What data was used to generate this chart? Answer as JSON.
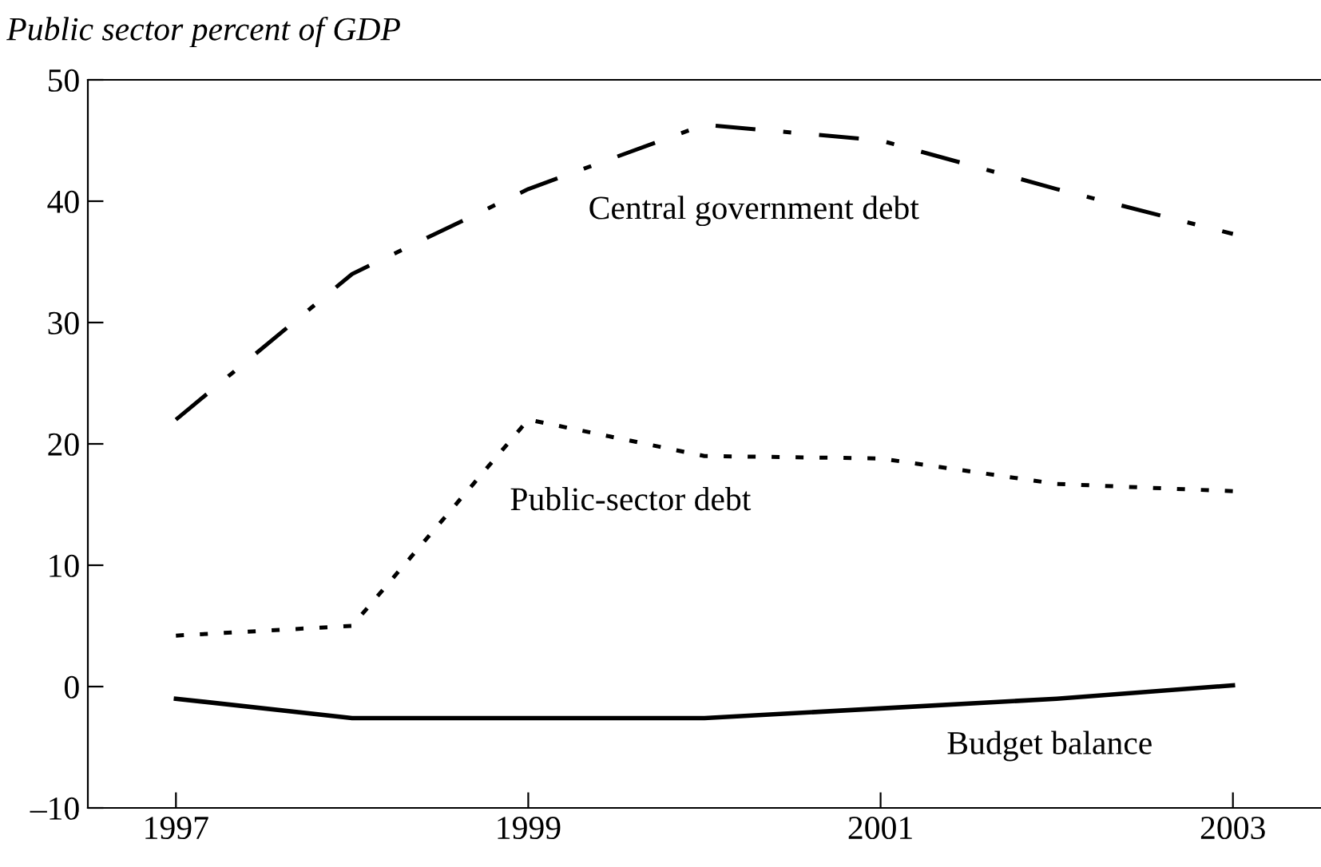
{
  "chart_data": {
    "type": "line",
    "title": "Public sector percent of GDP",
    "x": [
      1997,
      1998,
      1999,
      2000,
      2001,
      2002,
      2003
    ],
    "series": [
      {
        "name": "Central government debt",
        "color": "#000000",
        "line_style": "dashdot",
        "values": [
          22,
          34,
          41,
          46.3,
          45,
          41,
          37.3
        ]
      },
      {
        "name": "Public-sector debt",
        "color": "#000000",
        "line_style": "dotted",
        "values": [
          4.2,
          5,
          22,
          19,
          18.8,
          16.7,
          16.1
        ]
      },
      {
        "name": "Budget balance",
        "color": "#000000",
        "line_style": "solid",
        "values": [
          -1,
          -2.6,
          -2.6,
          -2.6,
          -1.8,
          -1,
          0.1
        ]
      }
    ],
    "xlim": [
      1996.5,
      2003.5
    ],
    "xticks": [
      1997,
      1999,
      2001,
      2003
    ],
    "ylim": [
      -10,
      50
    ],
    "yticks": [
      {
        "value": -10,
        "label": "–10"
      },
      0,
      10,
      20,
      30,
      40,
      50
    ],
    "grid": false,
    "legend": false
  }
}
